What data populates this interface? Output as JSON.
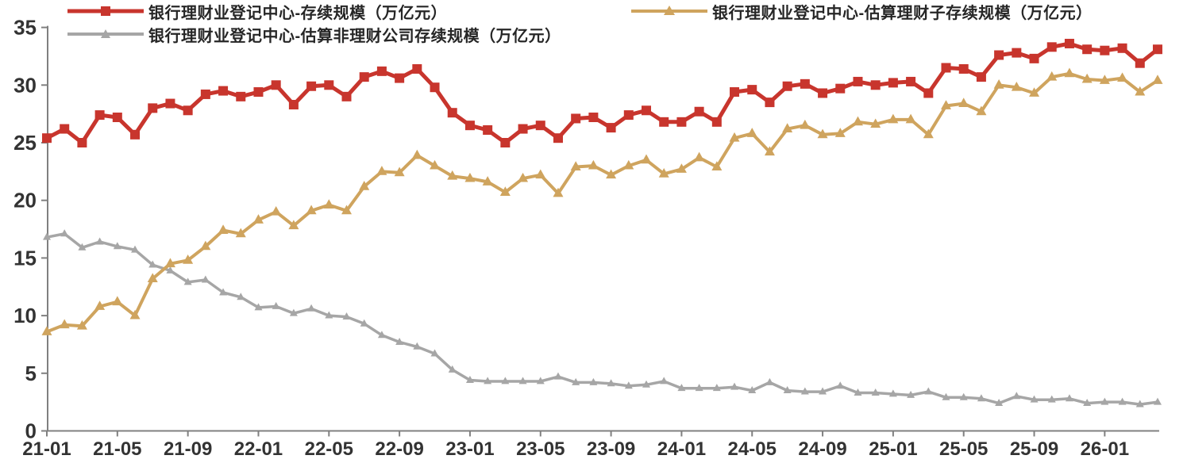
{
  "chart_data": {
    "type": "line",
    "title": "",
    "xlabel": "",
    "ylabel": "",
    "ylim": [
      0,
      35
    ],
    "y_ticks": [
      0,
      5,
      10,
      15,
      20,
      25,
      30,
      35
    ],
    "grid": false,
    "legend_position": "top",
    "x_tick_labels": [
      "21-01",
      "21-05",
      "21-09",
      "22-01",
      "22-05",
      "22-09",
      "23-01",
      "23-05",
      "23-09",
      "24-01",
      "24-05",
      "24-09",
      "25-01",
      "25-05",
      "25-09",
      "26-01"
    ],
    "months": [
      "21-01",
      "21-02",
      "21-03",
      "21-04",
      "21-05",
      "21-06",
      "21-07",
      "21-08",
      "21-09",
      "21-10",
      "21-11",
      "21-12",
      "22-01",
      "22-02",
      "22-03",
      "22-04",
      "22-05",
      "22-06",
      "22-07",
      "22-08",
      "22-09",
      "22-10",
      "22-11",
      "22-12",
      "23-01",
      "23-02",
      "23-03",
      "23-04",
      "23-05",
      "23-06",
      "23-07",
      "23-08",
      "23-09",
      "23-10",
      "23-11",
      "23-12",
      "24-01",
      "24-02",
      "24-03",
      "24-04",
      "24-05",
      "24-06",
      "24-07",
      "24-08",
      "24-09",
      "24-10",
      "24-11",
      "24-12",
      "25-01",
      "25-02",
      "25-03",
      "25-04",
      "25-05",
      "25-06",
      "25-07",
      "25-08",
      "25-09",
      "25-10",
      "25-11",
      "25-12",
      "26-01",
      "26-02",
      "26-03",
      "26-04"
    ],
    "series": [
      {
        "name": "银行理财业登记中心-存续规模（万亿元）",
        "color": "#C8352D",
        "marker": "square",
        "values": [
          25.4,
          26.2,
          25.0,
          27.4,
          27.2,
          25.7,
          28.0,
          28.4,
          27.8,
          29.2,
          29.5,
          29.0,
          29.4,
          30.0,
          28.3,
          29.9,
          30.0,
          29.0,
          30.7,
          31.2,
          30.6,
          31.4,
          29.8,
          27.6,
          26.5,
          26.1,
          25.0,
          26.2,
          26.5,
          25.4,
          27.1,
          27.2,
          26.3,
          27.4,
          27.8,
          26.8,
          26.8,
          27.7,
          26.8,
          29.4,
          29.6,
          28.5,
          29.9,
          30.1,
          29.3,
          29.7,
          30.3,
          30.0,
          30.2,
          30.3,
          29.3,
          31.5,
          31.4,
          30.7,
          32.6,
          32.8,
          32.3,
          33.3,
          33.6,
          33.1,
          33.0,
          33.2,
          31.9,
          33.1
        ]
      },
      {
        "name": "银行理财业登记中心-估算理财子存续规模（万亿元）",
        "color": "#CFA45E",
        "marker": "triangle",
        "values": [
          8.6,
          9.2,
          9.1,
          10.8,
          11.2,
          10.0,
          13.2,
          14.5,
          14.8,
          16.0,
          17.4,
          17.1,
          18.3,
          19.0,
          17.8,
          19.1,
          19.6,
          19.1,
          21.2,
          22.5,
          22.4,
          23.9,
          23.0,
          22.1,
          21.9,
          21.6,
          20.7,
          21.9,
          22.2,
          20.6,
          22.9,
          23.0,
          22.2,
          23.0,
          23.5,
          22.3,
          22.7,
          23.7,
          22.9,
          25.4,
          25.8,
          24.2,
          26.2,
          26.5,
          25.7,
          25.8,
          26.8,
          26.6,
          27.0,
          27.0,
          25.7,
          28.2,
          28.4,
          27.7,
          30.0,
          29.8,
          29.3,
          30.7,
          31.0,
          30.5,
          30.4,
          30.6,
          29.4,
          30.4
        ]
      },
      {
        "name": "银行理财业登记中心-估算非理财公司存续规模（万亿元）",
        "color": "#A6A6A6",
        "marker": "triangle",
        "values": [
          16.8,
          17.1,
          15.9,
          16.4,
          16.0,
          15.7,
          14.4,
          13.9,
          12.9,
          13.1,
          12.0,
          11.6,
          10.7,
          10.8,
          10.2,
          10.6,
          10.0,
          9.9,
          9.3,
          8.3,
          7.7,
          7.3,
          6.7,
          5.3,
          4.4,
          4.3,
          4.3,
          4.3,
          4.3,
          4.7,
          4.2,
          4.2,
          4.1,
          3.9,
          4.0,
          4.3,
          3.7,
          3.7,
          3.7,
          3.8,
          3.5,
          4.2,
          3.5,
          3.4,
          3.4,
          3.9,
          3.3,
          3.3,
          3.2,
          3.1,
          3.4,
          2.9,
          2.9,
          2.8,
          2.4,
          3.0,
          2.7,
          2.7,
          2.8,
          2.4,
          2.5,
          2.5,
          2.3,
          2.5
        ]
      }
    ],
    "axis_color": "#808080",
    "tick_label_color": "#333333"
  }
}
